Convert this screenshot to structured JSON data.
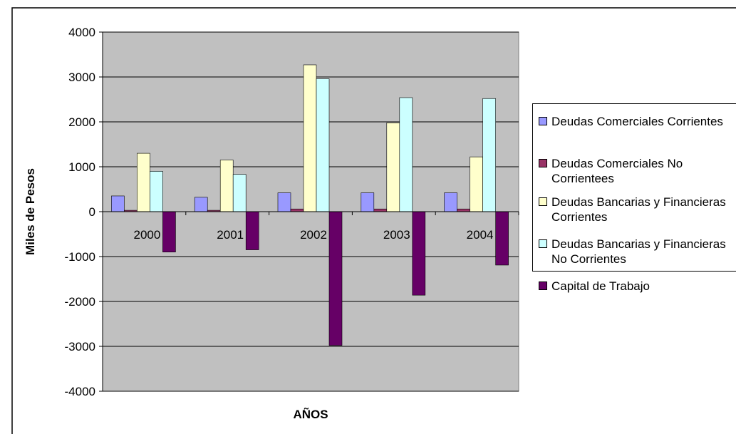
{
  "chart_data": {
    "type": "bar",
    "title": "",
    "xlabel": "AÑOS",
    "ylabel": "Miles de Pesos",
    "ylim": [
      -4000,
      4000
    ],
    "yticks": [
      4000,
      3000,
      2000,
      1000,
      0,
      -1000,
      -2000,
      -3000,
      -4000
    ],
    "grid": true,
    "legend_position": "right",
    "plot_background": "#c0c0c0",
    "categories": [
      "2000",
      "2001",
      "2002",
      "2003",
      "2004"
    ],
    "series": [
      {
        "name": "Deudas Comerciales Corrientes",
        "color": "#9999ff",
        "values": [
          350,
          320,
          420,
          420,
          420
        ]
      },
      {
        "name": "Deudas Comerciales No Corrientees",
        "color": "#993366",
        "values": [
          30,
          30,
          60,
          60,
          60
        ]
      },
      {
        "name": "Deudas Bancarias y Financieras Corrientes",
        "color": "#ffffcc",
        "values": [
          1300,
          1150,
          3270,
          1980,
          1220
        ]
      },
      {
        "name": "Deudas Bancarias y Financieras No Corrientes",
        "color": "#ccffff",
        "values": [
          900,
          830,
          2960,
          2540,
          2520
        ]
      },
      {
        "name": "Capital de Trabajo",
        "color": "#660066",
        "values": [
          -900,
          -850,
          -2980,
          -1860,
          -1190
        ]
      }
    ]
  }
}
